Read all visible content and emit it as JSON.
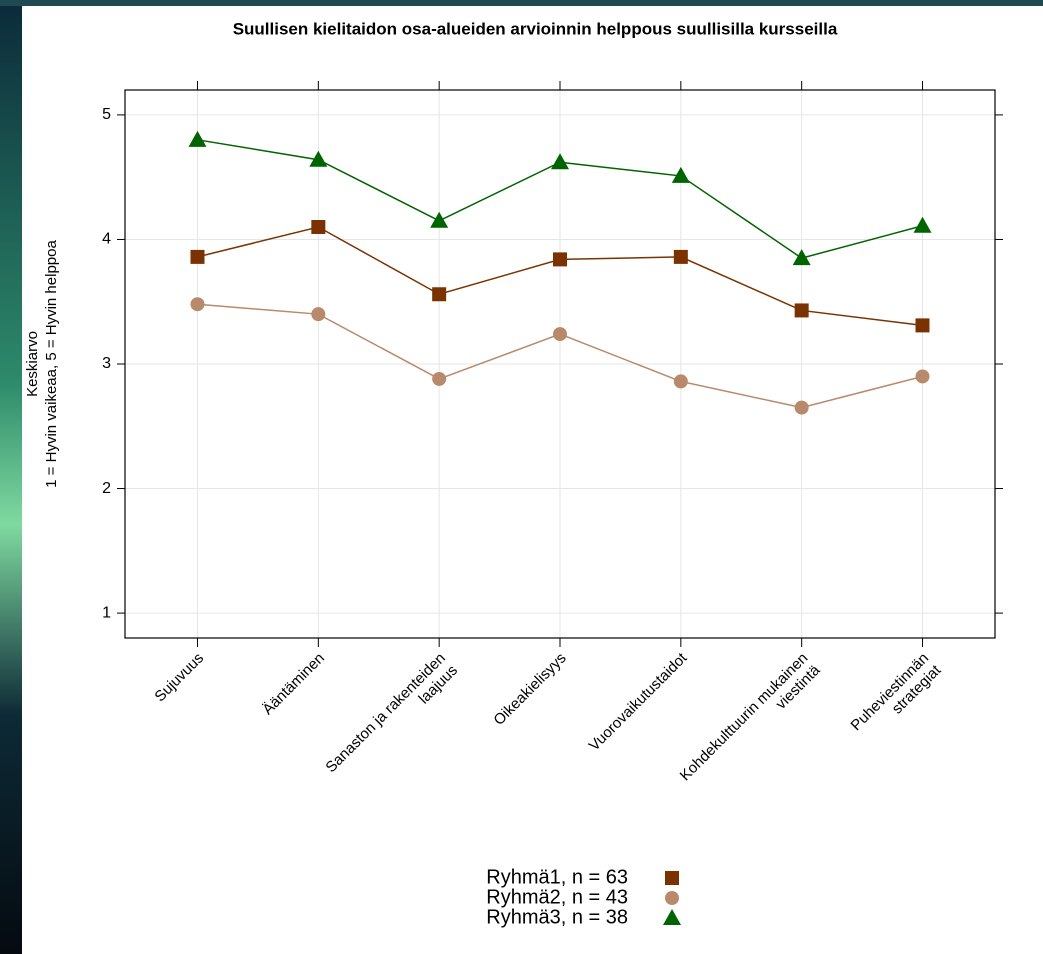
{
  "chart_data": {
    "type": "line",
    "title": "Suullisen kielitaidon osa-alueiden arvioinnin helppous suullisilla kursseilla",
    "y_label": [
      "Keskiarvo",
      "1 = Hyvin vaikeaa, 5 = Hyvin helppoa"
    ],
    "categories": [
      "Sujuvuus",
      "Ääntäminen",
      "Sanaston ja rakenteiden\nlaajuus",
      "Oikeakielisyys",
      "Vuorovaikutustaidot",
      "Kohdekulttuurin mukainen\nviestintä",
      "Puheviestinnän\nstrategiat"
    ],
    "series": [
      {
        "name": "Ryhmä1, n = 63",
        "color": "#7a3300",
        "marker": "square",
        "values": [
          3.86,
          4.1,
          3.56,
          3.84,
          3.86,
          3.43,
          3.31
        ]
      },
      {
        "name": "Ryhmä2, n = 43",
        "color": "#b8896a",
        "marker": "circle",
        "values": [
          3.48,
          3.4,
          2.88,
          3.24,
          2.86,
          2.65,
          2.9
        ]
      },
      {
        "name": "Ryhmä3, n = 38",
        "color": "#006400",
        "marker": "triangle",
        "values": [
          4.8,
          4.64,
          4.15,
          4.62,
          4.51,
          3.85,
          4.11
        ]
      }
    ],
    "ylim": [
      0.8,
      5.2
    ],
    "yticks": [
      1,
      2,
      3,
      4,
      5
    ],
    "grid": true
  }
}
